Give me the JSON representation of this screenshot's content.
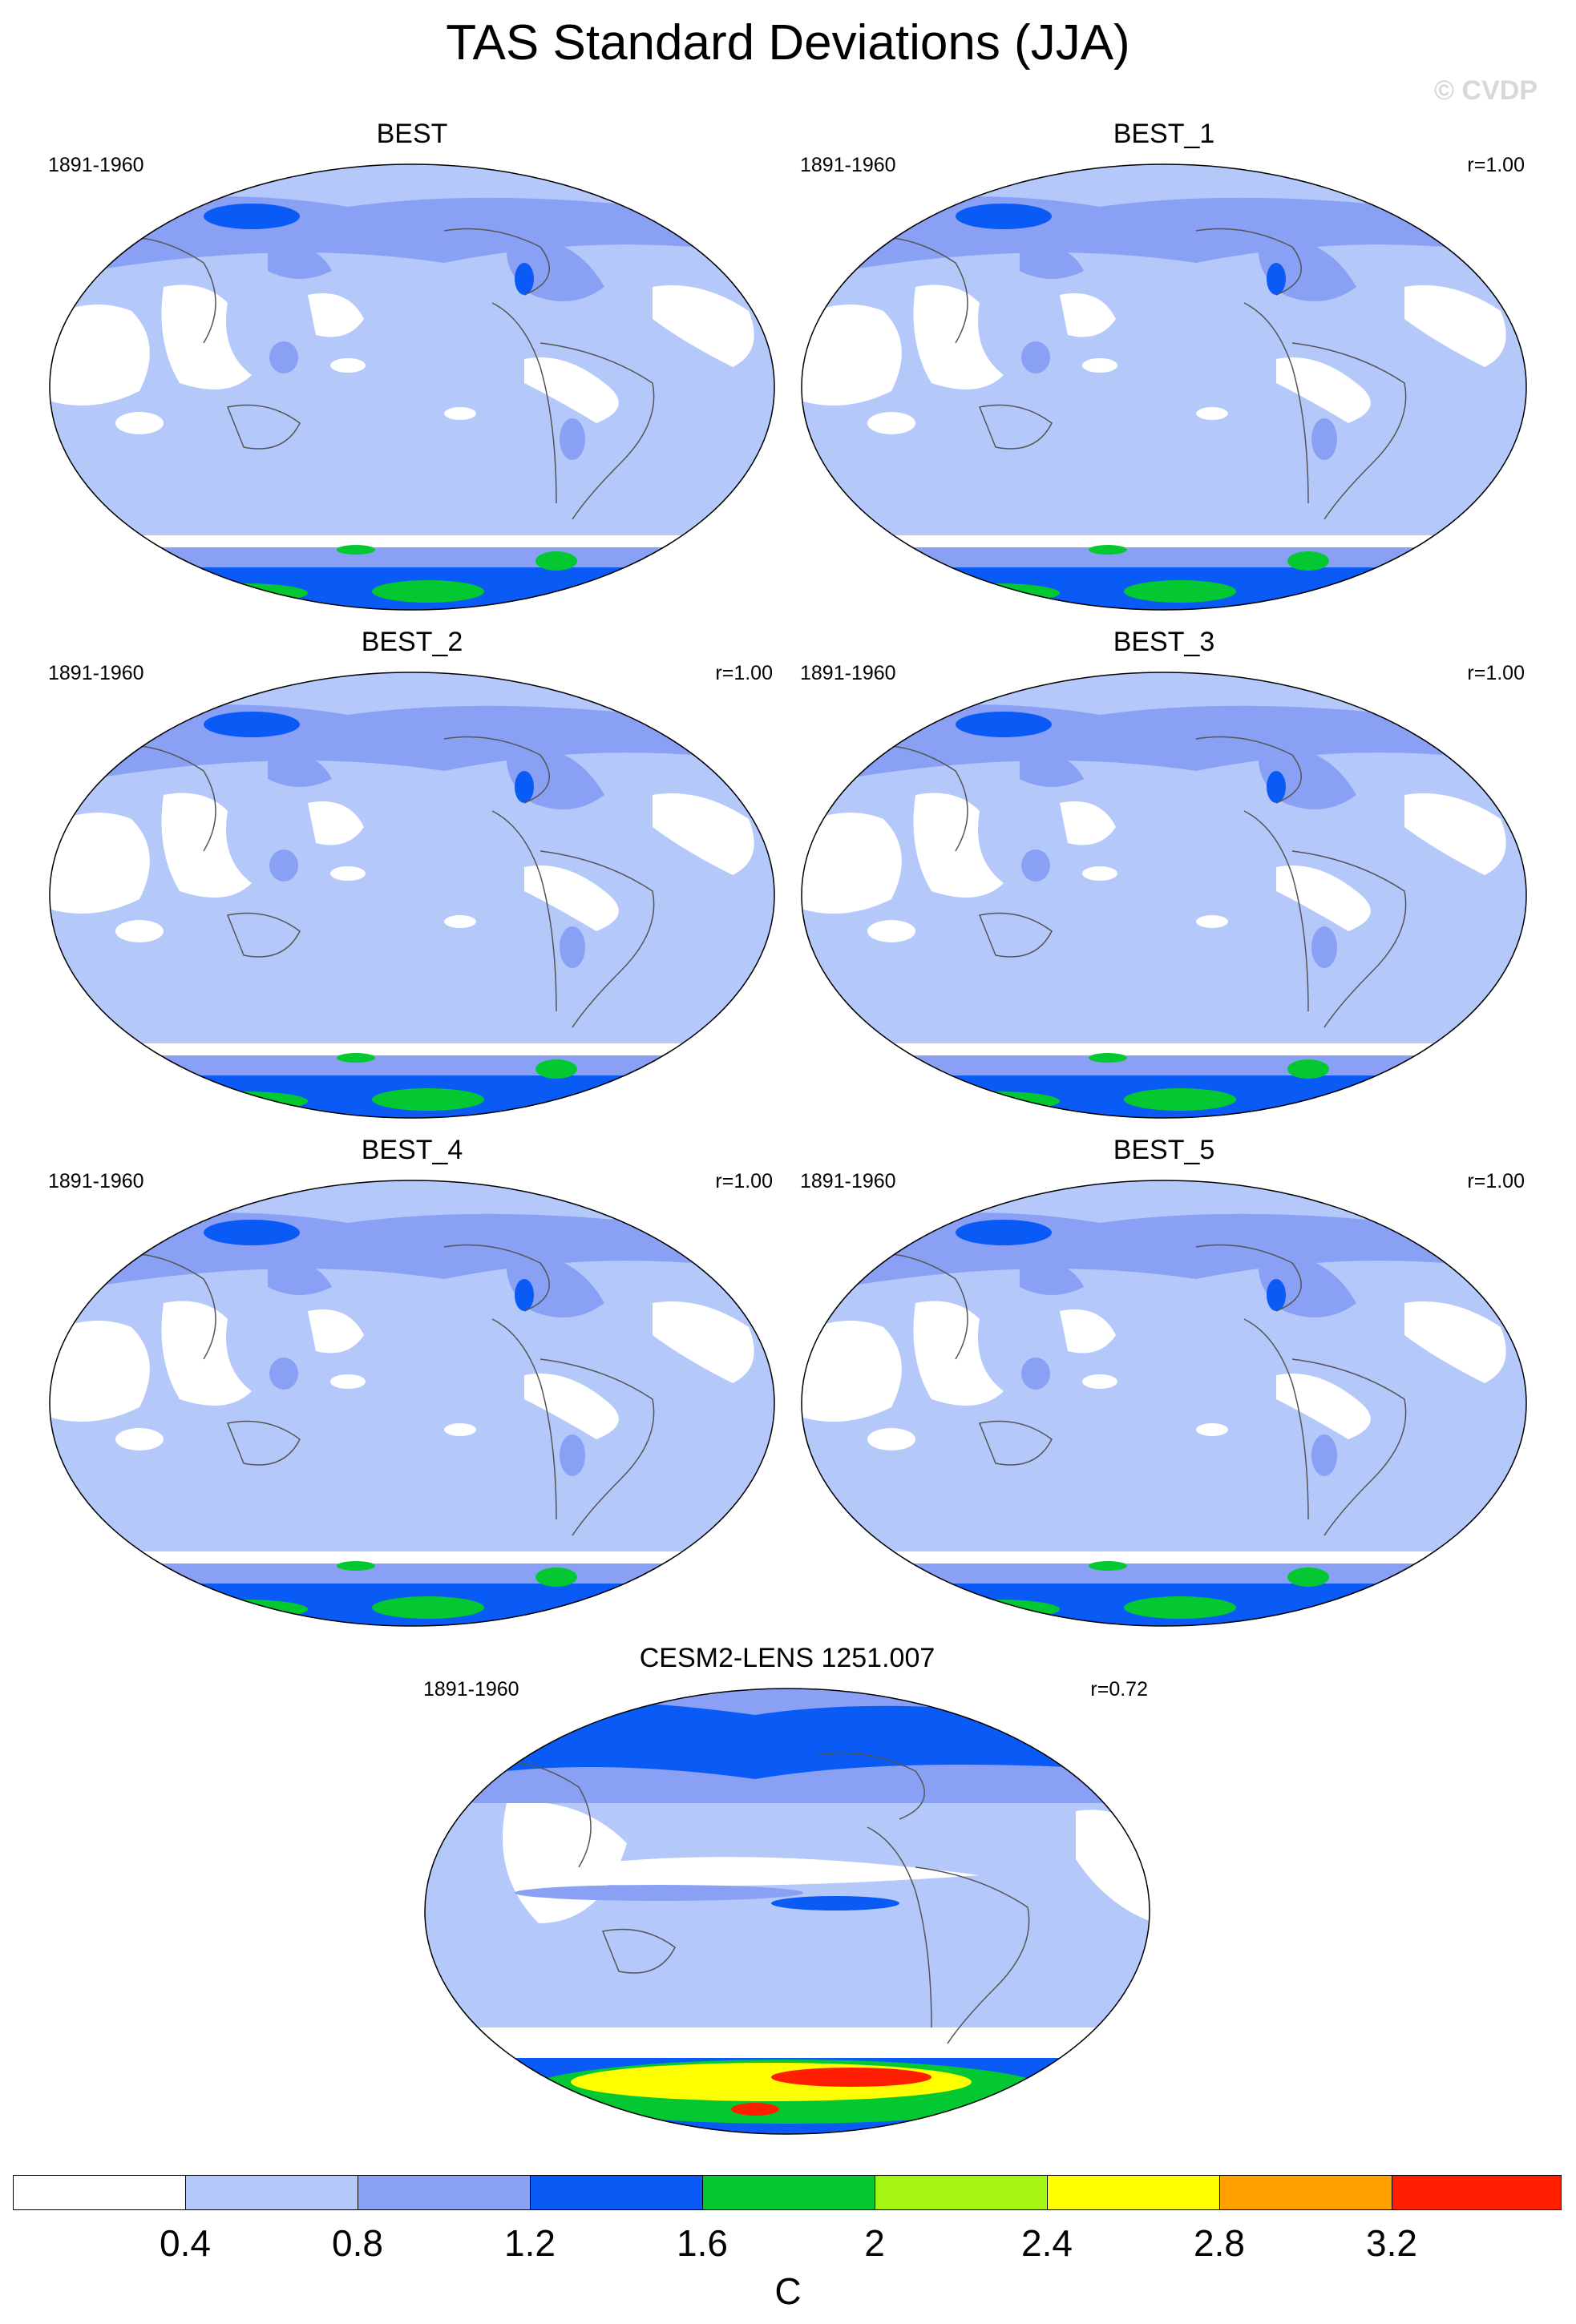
{
  "title": "TAS Standard Deviations (JJA)",
  "watermark": "© CVDP",
  "panels": [
    {
      "name": "BEST",
      "period": "1891-1960",
      "r": ""
    },
    {
      "name": "BEST_1",
      "period": "1891-1960",
      "r": "r=1.00"
    },
    {
      "name": "BEST_2",
      "period": "1891-1960",
      "r": "r=1.00"
    },
    {
      "name": "BEST_3",
      "period": "1891-1960",
      "r": "r=1.00"
    },
    {
      "name": "BEST_4",
      "period": "1891-1960",
      "r": "r=1.00"
    },
    {
      "name": "BEST_5",
      "period": "1891-1960",
      "r": "r=1.00"
    },
    {
      "name": "CESM2-LENS 1251.007",
      "period": "1891-1960",
      "r": "r=0.72"
    }
  ],
  "colorbar": {
    "labels": [
      "0.4",
      "0.8",
      "1.2",
      "1.6",
      "2",
      "2.4",
      "2.8",
      "3.2"
    ],
    "colors": [
      "#ffffff",
      "#b4c8fa",
      "#8aa0f5",
      "#0a5af5",
      "#04c832",
      "#a5f514",
      "#ffff00",
      "#ffa000",
      "#ff1e00"
    ],
    "units": "C"
  },
  "map_colors": {
    "ocean_fill": "#b4c8fa",
    "low_variance": "#ffffff",
    "mid_variance": "#8aa0f5",
    "high_variance": "#0a5af5",
    "very_high": "#04c832",
    "coast": "#555555"
  }
}
